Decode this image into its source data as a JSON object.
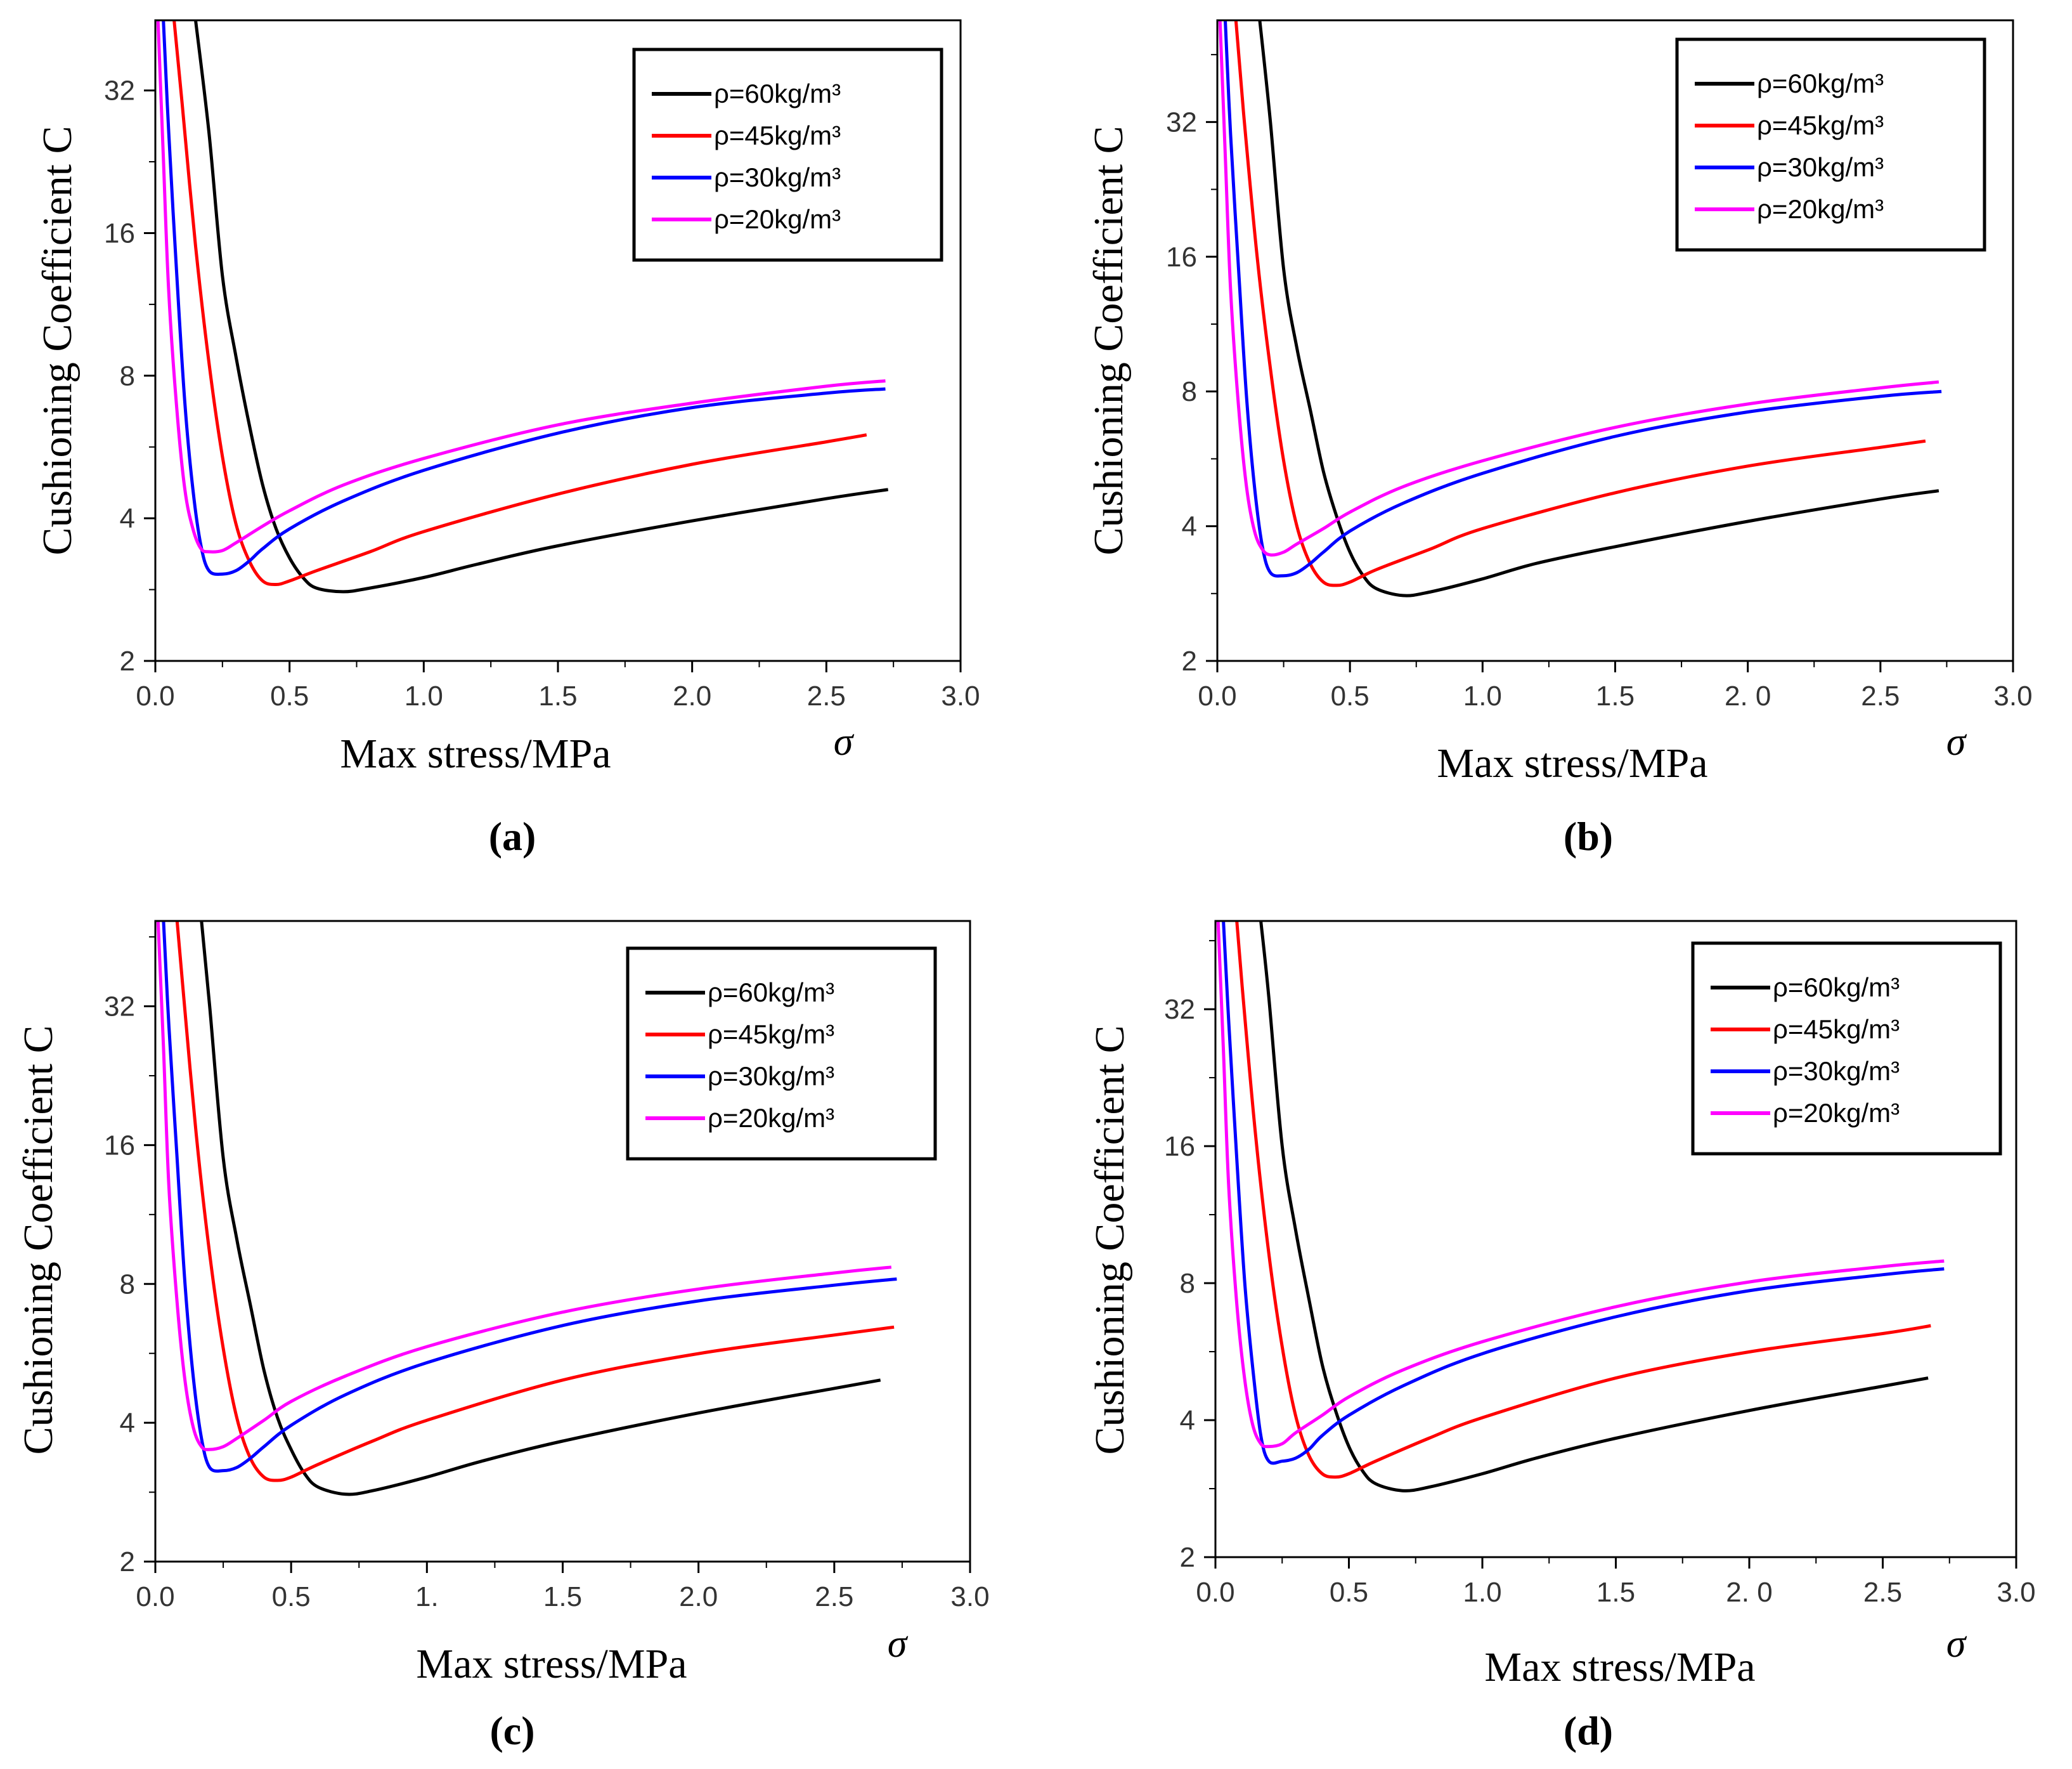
{
  "figure": {
    "legend_symbol": "ρ",
    "sigma_label": "σ"
  },
  "chart_data": [
    {
      "panel": "a",
      "caption": "(a)",
      "type": "line",
      "xlabel": "Max stress/MPa",
      "ylabel": "Cushioning Coefficient C",
      "xlim": [
        0,
        3.0
      ],
      "ylim": [
        2,
        45
      ],
      "yscale": "log2",
      "xticks": [
        "0.0",
        "0.5",
        "1.0",
        "1.5",
        "2.0",
        "2.5",
        "3.0"
      ],
      "yticks": [
        "2",
        "4",
        "8",
        "16",
        "32"
      ],
      "legend_position": "top-right",
      "series": [
        {
          "name": "ρ=60kg/m³",
          "color": "#000000",
          "x": [
            0.15,
            0.2,
            0.25,
            0.3,
            0.35,
            0.4,
            0.45,
            0.5,
            0.55,
            0.6,
            0.7,
            0.8,
            1.0,
            1.2,
            1.5,
            2.0,
            2.5,
            2.73
          ],
          "y": [
            45,
            26,
            13,
            8.8,
            6.3,
            4.7,
            3.8,
            3.3,
            3.0,
            2.85,
            2.8,
            2.85,
            3.0,
            3.2,
            3.5,
            3.95,
            4.4,
            4.6
          ]
        },
        {
          "name": "ρ=45kg/m³",
          "color": "#ff0000",
          "x": [
            0.07,
            0.1,
            0.15,
            0.2,
            0.25,
            0.3,
            0.35,
            0.4,
            0.45,
            0.5,
            0.6,
            0.8,
            1.0,
            1.5,
            2.0,
            2.5,
            2.65
          ],
          "y": [
            45,
            30,
            15,
            8.5,
            5.4,
            3.9,
            3.25,
            2.95,
            2.9,
            2.95,
            3.1,
            3.4,
            3.75,
            4.5,
            5.2,
            5.8,
            6.0
          ]
        },
        {
          "name": "ρ=30kg/m³",
          "color": "#0000ff",
          "x": [
            0.03,
            0.05,
            0.08,
            0.11,
            0.14,
            0.17,
            0.2,
            0.25,
            0.3,
            0.35,
            0.4,
            0.5,
            0.7,
            1.0,
            1.5,
            2.0,
            2.5,
            2.72
          ],
          "y": [
            45,
            26,
            13,
            7.0,
            4.6,
            3.5,
            3.1,
            3.05,
            3.1,
            3.25,
            3.45,
            3.8,
            4.35,
            5.05,
            6.05,
            6.85,
            7.35,
            7.5
          ]
        },
        {
          "name": "ρ=20kg/m³",
          "color": "#ff00ff",
          "x": [
            0.01,
            0.03,
            0.05,
            0.08,
            0.11,
            0.14,
            0.17,
            0.2,
            0.25,
            0.3,
            0.4,
            0.5,
            0.7,
            1.0,
            1.5,
            2.0,
            2.5,
            2.72
          ],
          "y": [
            45,
            23,
            12,
            6.8,
            4.6,
            3.8,
            3.45,
            3.4,
            3.42,
            3.55,
            3.85,
            4.15,
            4.7,
            5.35,
            6.3,
            7.0,
            7.6,
            7.8
          ]
        }
      ]
    },
    {
      "panel": "b",
      "caption": "(b)",
      "type": "line",
      "xlabel": "Max stress/MPa",
      "ylabel": "Cushioning Coefficient C",
      "xlim": [
        0,
        3.0
      ],
      "ylim": [
        2,
        54
      ],
      "yscale": "log2",
      "xticks": [
        "0.0",
        "0.5",
        "1.0",
        "1.5",
        "2. 0",
        "2.5",
        "3.0"
      ],
      "yticks": [
        "2",
        "4",
        "8",
        "16",
        "32"
      ],
      "legend_position": "top-right",
      "series": [
        {
          "name": "ρ=60kg/m³",
          "color": "#000000",
          "x": [
            0.16,
            0.2,
            0.25,
            0.3,
            0.35,
            0.4,
            0.45,
            0.5,
            0.55,
            0.6,
            0.7,
            0.8,
            1.0,
            1.2,
            1.5,
            2.0,
            2.5,
            2.72
          ],
          "y": [
            54,
            32,
            15,
            10,
            7.3,
            5.3,
            4.2,
            3.5,
            3.1,
            2.9,
            2.8,
            2.85,
            3.05,
            3.3,
            3.6,
            4.1,
            4.6,
            4.8
          ]
        },
        {
          "name": "ρ=45kg/m³",
          "color": "#ff0000",
          "x": [
            0.07,
            0.1,
            0.15,
            0.2,
            0.25,
            0.3,
            0.35,
            0.4,
            0.45,
            0.5,
            0.6,
            0.8,
            1.0,
            1.5,
            2.0,
            2.5,
            2.67
          ],
          "y": [
            54,
            33,
            16,
            9.0,
            5.6,
            4.0,
            3.3,
            3.0,
            2.95,
            3.0,
            3.2,
            3.55,
            3.95,
            4.75,
            5.45,
            6.0,
            6.2
          ]
        },
        {
          "name": "ρ=30kg/m³",
          "color": "#0000ff",
          "x": [
            0.03,
            0.05,
            0.08,
            0.11,
            0.14,
            0.17,
            0.2,
            0.25,
            0.3,
            0.35,
            0.4,
            0.5,
            0.7,
            1.0,
            1.5,
            2.0,
            2.5,
            2.73
          ],
          "y": [
            54,
            30,
            15,
            7.8,
            4.9,
            3.6,
            3.15,
            3.1,
            3.15,
            3.3,
            3.5,
            3.9,
            4.5,
            5.25,
            6.35,
            7.2,
            7.8,
            8.0
          ]
        },
        {
          "name": "ρ=20kg/m³",
          "color": "#ff00ff",
          "x": [
            0.01,
            0.03,
            0.05,
            0.08,
            0.11,
            0.14,
            0.17,
            0.2,
            0.25,
            0.3,
            0.4,
            0.5,
            0.7,
            1.0,
            1.5,
            2.0,
            2.5,
            2.72
          ],
          "y": [
            54,
            27,
            13.5,
            7.4,
            4.9,
            3.9,
            3.55,
            3.45,
            3.5,
            3.65,
            3.95,
            4.3,
            4.9,
            5.6,
            6.65,
            7.5,
            8.15,
            8.4
          ]
        }
      ]
    },
    {
      "panel": "c",
      "caption": "(c)",
      "type": "line",
      "xlabel": "Max stress/MPa",
      "ylabel": "Cushioning Coefficient C",
      "xlim": [
        0,
        3.0
      ],
      "ylim": [
        2,
        49
      ],
      "yscale": "log2",
      "xticks": [
        "0.0",
        "0.5",
        "1.",
        "1.5",
        "2.0",
        "2.5",
        "3.0"
      ],
      "yticks": [
        "2",
        "4",
        "8",
        "16",
        "32"
      ],
      "legend_position": "top-right",
      "series": [
        {
          "name": "ρ=60kg/m³",
          "color": "#000000",
          "x": [
            0.17,
            0.2,
            0.25,
            0.3,
            0.35,
            0.4,
            0.45,
            0.5,
            0.55,
            0.6,
            0.7,
            0.8,
            1.0,
            1.2,
            1.5,
            2.0,
            2.5,
            2.67
          ],
          "y": [
            49,
            32,
            15,
            10,
            7.2,
            5.2,
            4.1,
            3.5,
            3.1,
            2.9,
            2.8,
            2.85,
            3.05,
            3.3,
            3.65,
            4.2,
            4.75,
            4.95
          ]
        },
        {
          "name": "ρ=45kg/m³",
          "color": "#ff0000",
          "x": [
            0.08,
            0.1,
            0.15,
            0.2,
            0.25,
            0.3,
            0.35,
            0.4,
            0.45,
            0.5,
            0.6,
            0.8,
            1.0,
            1.5,
            2.0,
            2.5,
            2.72
          ],
          "y": [
            49,
            36,
            17,
            9.3,
            5.8,
            4.1,
            3.35,
            3.05,
            3.0,
            3.05,
            3.25,
            3.65,
            4.05,
            4.95,
            5.65,
            6.2,
            6.45
          ]
        },
        {
          "name": "ρ=30kg/m³",
          "color": "#0000ff",
          "x": [
            0.03,
            0.05,
            0.08,
            0.11,
            0.14,
            0.17,
            0.2,
            0.25,
            0.3,
            0.35,
            0.4,
            0.5,
            0.7,
            1.0,
            1.5,
            2.0,
            2.5,
            2.73
          ],
          "y": [
            49,
            29,
            15,
            7.9,
            5.0,
            3.7,
            3.2,
            3.15,
            3.2,
            3.35,
            3.55,
            3.95,
            4.6,
            5.4,
            6.5,
            7.35,
            7.95,
            8.2
          ]
        },
        {
          "name": "ρ=20kg/m³",
          "color": "#ff00ff",
          "x": [
            0.01,
            0.03,
            0.05,
            0.08,
            0.11,
            0.14,
            0.17,
            0.2,
            0.25,
            0.3,
            0.4,
            0.5,
            0.7,
            1.0,
            1.5,
            2.0,
            2.5,
            2.71
          ],
          "y": [
            49,
            26,
            13,
            7.3,
            4.9,
            3.9,
            3.55,
            3.5,
            3.55,
            3.7,
            4.05,
            4.45,
            5.05,
            5.85,
            6.95,
            7.8,
            8.45,
            8.7
          ]
        }
      ]
    },
    {
      "panel": "d",
      "caption": "(d)",
      "type": "line",
      "xlabel": "Max stress/MPa",
      "ylabel": "Cushioning Coefficient C",
      "xlim": [
        0,
        3.0
      ],
      "ylim": [
        2,
        50
      ],
      "yscale": "log2",
      "xticks": [
        "0.0",
        "0.5",
        "1.0",
        "1.5",
        "2. 0",
        "2.5",
        "3.0"
      ],
      "yticks": [
        "2",
        "4",
        "8",
        "16",
        "32"
      ],
      "legend_position": "top-right",
      "series": [
        {
          "name": "ρ=60kg/m³",
          "color": "#000000",
          "x": [
            0.17,
            0.2,
            0.25,
            0.3,
            0.35,
            0.4,
            0.45,
            0.5,
            0.55,
            0.6,
            0.7,
            0.8,
            1.0,
            1.2,
            1.5,
            2.0,
            2.5,
            2.67
          ],
          "y": [
            50,
            34,
            16,
            10.5,
            7.4,
            5.3,
            4.2,
            3.5,
            3.1,
            2.9,
            2.8,
            2.85,
            3.05,
            3.3,
            3.65,
            4.2,
            4.75,
            4.95
          ]
        },
        {
          "name": "ρ=45kg/m³",
          "color": "#ff0000",
          "x": [
            0.08,
            0.1,
            0.15,
            0.2,
            0.25,
            0.3,
            0.35,
            0.4,
            0.45,
            0.5,
            0.6,
            0.8,
            1.0,
            1.5,
            2.0,
            2.5,
            2.68
          ],
          "y": [
            50,
            36,
            17,
            9.3,
            5.8,
            4.1,
            3.35,
            3.05,
            3.0,
            3.05,
            3.25,
            3.65,
            4.05,
            4.95,
            5.65,
            6.2,
            6.45
          ]
        },
        {
          "name": "ρ=30kg/m³",
          "color": "#0000ff",
          "x": [
            0.03,
            0.05,
            0.08,
            0.11,
            0.14,
            0.17,
            0.2,
            0.25,
            0.3,
            0.35,
            0.4,
            0.5,
            0.7,
            1.0,
            1.5,
            2.0,
            2.5,
            2.73
          ],
          "y": [
            50,
            30,
            15,
            8.0,
            5.2,
            3.7,
            3.25,
            3.25,
            3.3,
            3.45,
            3.7,
            4.1,
            4.75,
            5.6,
            6.75,
            7.7,
            8.35,
            8.6
          ]
        },
        {
          "name": "ρ=20kg/m³",
          "color": "#ff00ff",
          "x": [
            0.01,
            0.03,
            0.05,
            0.08,
            0.11,
            0.14,
            0.17,
            0.2,
            0.25,
            0.3,
            0.4,
            0.5,
            0.7,
            1.0,
            1.5,
            2.0,
            2.5,
            2.73
          ],
          "y": [
            50,
            26,
            13,
            7.2,
            4.9,
            3.9,
            3.55,
            3.5,
            3.55,
            3.75,
            4.1,
            4.5,
            5.15,
            5.95,
            7.1,
            8.05,
            8.7,
            8.95
          ]
        }
      ]
    }
  ]
}
